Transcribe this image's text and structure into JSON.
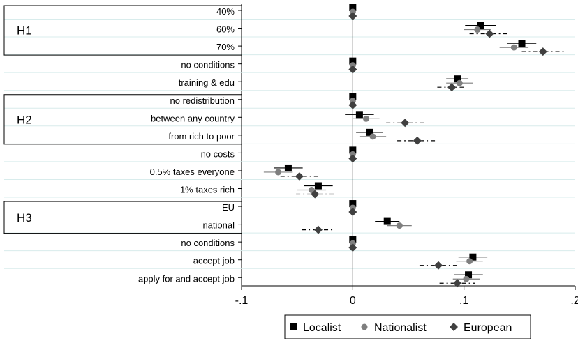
{
  "chart_data": {
    "type": "scatter",
    "orientation": "horizontal-coefficient-plot",
    "categories": [
      "40%",
      "60%",
      "70%",
      "no conditions",
      "training & edu",
      "no redistribution",
      "between any country",
      "from rich to poor",
      "no costs",
      "0.5% taxes everyone",
      "1% taxes rich",
      "EU",
      "national",
      "no conditions",
      "accept job",
      "apply for and accept job"
    ],
    "groups": [
      {
        "label": "H1",
        "first": 0,
        "last": 2
      },
      {
        "label": "H2",
        "first": 5,
        "last": 7
      },
      {
        "label": "H3",
        "first": 11,
        "last": 12
      }
    ],
    "xlim": [
      -0.1,
      0.2
    ],
    "x_ticks": [
      -0.1,
      0,
      0.1,
      0.2
    ],
    "x_tick_labels": [
      "-.1",
      "0",
      ".1",
      ".2"
    ],
    "reference_line": 0,
    "grid": "horizontal",
    "legend_position": "bottom",
    "series": [
      {
        "name": "Localist",
        "marker": "square",
        "color": "#000000",
        "line_style": "solid",
        "estimate": [
          0,
          0.115,
          0.152,
          0,
          0.094,
          0,
          0.006,
          0.015,
          0,
          -0.058,
          -0.031,
          0,
          0.031,
          0,
          0.108,
          0.104
        ],
        "ci_low": [
          0,
          0.101,
          0.139,
          0,
          0.084,
          0,
          -0.007,
          0.003,
          0,
          -0.071,
          -0.044,
          0,
          0.02,
          0,
          0.095,
          0.091
        ],
        "ci_high": [
          0,
          0.129,
          0.165,
          0,
          0.104,
          0,
          0.019,
          0.027,
          0,
          -0.045,
          -0.018,
          0,
          0.042,
          0,
          0.121,
          0.117
        ]
      },
      {
        "name": "Nationalist",
        "marker": "circle",
        "color": "#7f7f7f",
        "line_style": "solid",
        "estimate": [
          0,
          0.112,
          0.145,
          0,
          0.096,
          0,
          0.012,
          0.018,
          0,
          -0.067,
          -0.037,
          0,
          0.042,
          0,
          0.105,
          0.102
        ],
        "ci_low": [
          0,
          0.1,
          0.132,
          0,
          0.084,
          0,
          0.0,
          0.006,
          0,
          -0.08,
          -0.05,
          0,
          0.031,
          0,
          0.093,
          0.09
        ],
        "ci_high": [
          0,
          0.124,
          0.158,
          0,
          0.108,
          0,
          0.024,
          0.03,
          0,
          -0.054,
          -0.024,
          0,
          0.053,
          0,
          0.117,
          0.114
        ]
      },
      {
        "name": "European",
        "marker": "diamond",
        "color": "#404040",
        "line_style": "dash-dot",
        "estimate": [
          0,
          0.123,
          0.171,
          0,
          0.089,
          0,
          0.047,
          0.058,
          0,
          -0.048,
          -0.034,
          0,
          -0.031,
          0,
          0.077,
          0.094
        ],
        "ci_low": [
          0,
          0.105,
          0.152,
          0,
          0.076,
          0,
          0.03,
          0.04,
          0,
          -0.065,
          -0.051,
          0,
          -0.046,
          0,
          0.06,
          0.078
        ],
        "ci_high": [
          0,
          0.141,
          0.19,
          0,
          0.102,
          0,
          0.064,
          0.076,
          0,
          -0.031,
          -0.017,
          0,
          -0.016,
          0,
          0.094,
          0.11
        ]
      }
    ]
  }
}
